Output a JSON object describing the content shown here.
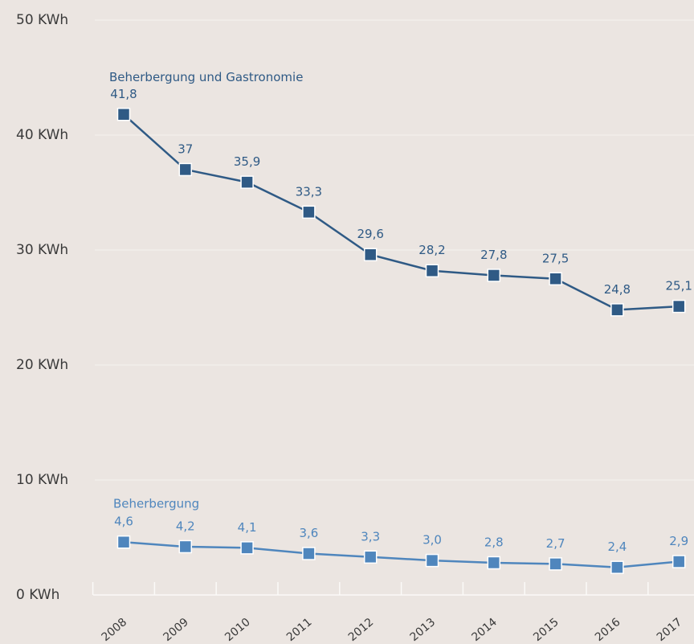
{
  "chart_data": {
    "type": "line",
    "categories": [
      "2008",
      "2009",
      "2010",
      "2011",
      "2012",
      "2013",
      "2014",
      "2015",
      "2016",
      "2017"
    ],
    "series": [
      {
        "name": "Beherbergung und Gastronomie",
        "color": "#2f5a85",
        "values": [
          41.8,
          37,
          35.9,
          33.3,
          29.6,
          28.2,
          27.8,
          27.5,
          24.8,
          25.1
        ],
        "value_labels": [
          "41,8",
          "37",
          "35,9",
          "33,3",
          "29,6",
          "28,2",
          "27,8",
          "27,5",
          "24,8",
          "25,1"
        ]
      },
      {
        "name": "Beherbergung",
        "color": "#4f86bd",
        "values": [
          4.6,
          4.2,
          4.1,
          3.6,
          3.3,
          3.0,
          2.8,
          2.7,
          2.4,
          2.9
        ],
        "value_labels": [
          "4,6",
          "4,2",
          "4,1",
          "3,6",
          "3,3",
          "3,0",
          "2,8",
          "2,7",
          "2,4",
          "2,9"
        ]
      }
    ],
    "ylim": [
      0,
      50
    ],
    "yticks": [
      {
        "value": 0,
        "label": "0 KWh"
      },
      {
        "value": 10,
        "label": "10 KWh"
      },
      {
        "value": 20,
        "label": "20 KWh"
      },
      {
        "value": 30,
        "label": "30 KWh"
      },
      {
        "value": 40,
        "label": "40 KWh"
      },
      {
        "value": 50,
        "label": "50 KWh"
      }
    ],
    "grid": true
  }
}
